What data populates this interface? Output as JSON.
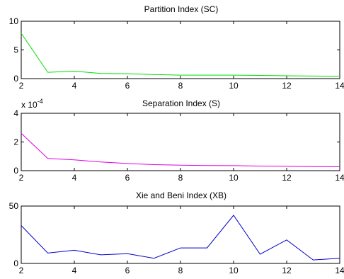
{
  "chart_data": [
    {
      "type": "line",
      "title": "Partition Index (SC)",
      "xlabel": "",
      "ylabel": "",
      "xlim": [
        2,
        14
      ],
      "ylim": [
        0,
        10
      ],
      "x_ticks": [
        "2",
        "4",
        "6",
        "8",
        "10",
        "12",
        "14"
      ],
      "y_ticks": [
        "0",
        "5",
        "10"
      ],
      "scale_label": "",
      "series": [
        {
          "color": "#00dd00",
          "x": [
            2,
            3,
            4,
            5,
            6,
            7,
            8,
            9,
            10,
            11,
            12,
            13,
            14
          ],
          "values": [
            7.9,
            1.1,
            1.3,
            0.9,
            0.85,
            0.7,
            0.6,
            0.6,
            0.6,
            0.55,
            0.5,
            0.45,
            0.4
          ]
        }
      ]
    },
    {
      "type": "line",
      "title": "Separation Index (S)",
      "xlabel": "",
      "ylabel": "",
      "xlim": [
        2,
        14
      ],
      "ylim": [
        0,
        4
      ],
      "x_ticks": [
        "2",
        "4",
        "6",
        "8",
        "10",
        "12",
        "14"
      ],
      "y_ticks": [
        "0",
        "2",
        "4"
      ],
      "scale_label": "x 10",
      "scale_exponent": "-4",
      "series": [
        {
          "color": "#dd00dd",
          "x": [
            2,
            3,
            4,
            5,
            6,
            7,
            8,
            9,
            10,
            11,
            12,
            13,
            14
          ],
          "values": [
            2.6,
            0.85,
            0.75,
            0.6,
            0.5,
            0.42,
            0.38,
            0.36,
            0.35,
            0.32,
            0.3,
            0.28,
            0.27
          ]
        }
      ]
    },
    {
      "type": "line",
      "title": "Xie and Beni Index (XB)",
      "xlabel": "",
      "ylabel": "",
      "xlim": [
        2,
        14
      ],
      "ylim": [
        0,
        50
      ],
      "x_ticks": [
        "2",
        "4",
        "6",
        "8",
        "10",
        "12",
        "14"
      ],
      "y_ticks": [
        "0",
        "50"
      ],
      "scale_label": "",
      "series": [
        {
          "color": "#0000cc",
          "x": [
            2,
            3,
            4,
            5,
            6,
            7,
            8,
            9,
            10,
            11,
            12,
            13,
            14
          ],
          "values": [
            33,
            9,
            11.5,
            7.5,
            8.5,
            4.5,
            13.5,
            13.5,
            42,
            8,
            20.5,
            3,
            4.5
          ]
        }
      ]
    }
  ]
}
